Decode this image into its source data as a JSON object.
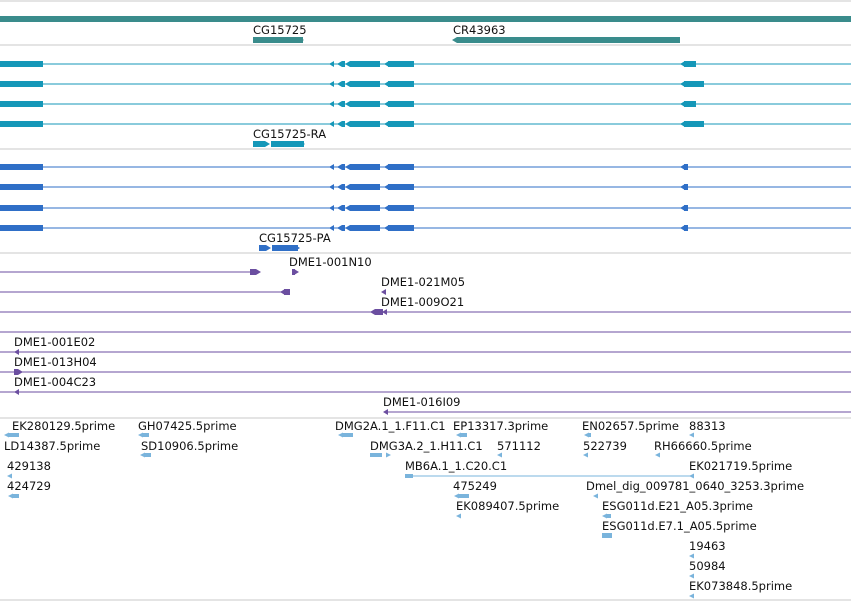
{
  "colors": {
    "gene": "#3a8c8c",
    "transcript_1": "#1597b8",
    "transcript_2": "#2f6fc7",
    "clone": "#6b4ea0",
    "est": "#7ab4dc",
    "divider": "#c8c8c8"
  },
  "gene_track": {
    "labels": [
      "CG15725",
      "CR43963"
    ]
  },
  "transcript_track_1": {
    "label": "CG15725-RA"
  },
  "transcript_track_2": {
    "label": "CG15725-PA"
  },
  "clone_track": {
    "labels": [
      "DME1-001N10",
      "DME1-021M05",
      "DME1-009O21",
      "DME1-001E02",
      "DME1-013H04",
      "DME1-004C23",
      "DME1-016I09"
    ]
  },
  "est_track": {
    "labels": [
      "EK280129.5prime",
      "GH07425.5prime",
      "DMG2A.1_1.F11.C1",
      "EP13317.3prime",
      "EN02657.5prime",
      "88313",
      "LD14387.5prime",
      "SD10906.5prime",
      "DMG3A.2_1.H11.C1",
      "571112",
      "522739",
      "RH66660.5prime",
      "429138",
      "MB6A.1_1.C20.C1",
      "EK021719.5prime",
      "424729",
      "475249",
      "Dmel_dig_009781_0640_3253.3prime",
      "EK089407.5prime",
      "ESG011d.E21_A05.3prime",
      "ESG011d.E7.1_A05.5prime",
      "19463",
      "50984",
      "EK073848.5prime"
    ]
  }
}
